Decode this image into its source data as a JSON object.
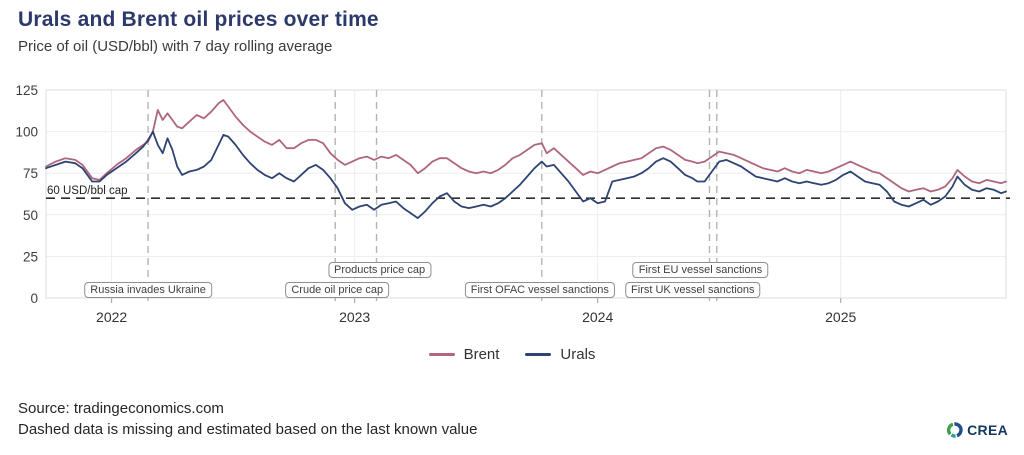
{
  "header": {
    "title": "Urals and Brent oil prices over time",
    "subtitle": "Price of oil (USD/bbl) with 7 day rolling average"
  },
  "chart_data": {
    "type": "line",
    "title": "Urals and Brent oil prices over time",
    "ylabel": "Price of oil (USD/bbl), 7 day rolling average",
    "x_range": [
      2021.73,
      2025.68
    ],
    "y_range": [
      0,
      125
    ],
    "y_ticks": [
      0,
      25,
      50,
      75,
      100,
      125
    ],
    "x_ticks": [
      2022,
      2023,
      2024,
      2025
    ],
    "grid": true,
    "legend_position": "bottom-center",
    "x": [
      2021.73,
      2021.77,
      2021.81,
      2021.85,
      2021.88,
      2021.92,
      2021.95,
      2021.98,
      2022.02,
      2022.06,
      2022.1,
      2022.13,
      2022.15,
      2022.17,
      2022.19,
      2022.21,
      2022.23,
      2022.25,
      2022.27,
      2022.29,
      2022.32,
      2022.35,
      2022.38,
      2022.41,
      2022.44,
      2022.46,
      2022.48,
      2022.51,
      2022.54,
      2022.57,
      2022.6,
      2022.63,
      2022.66,
      2022.69,
      2022.72,
      2022.75,
      2022.78,
      2022.81,
      2022.84,
      2022.87,
      2022.9,
      2022.93,
      2022.96,
      2022.99,
      2023.02,
      2023.05,
      2023.08,
      2023.11,
      2023.14,
      2023.17,
      2023.2,
      2023.23,
      2023.26,
      2023.29,
      2023.32,
      2023.35,
      2023.38,
      2023.41,
      2023.44,
      2023.47,
      2023.5,
      2023.53,
      2023.56,
      2023.59,
      2023.62,
      2023.65,
      2023.68,
      2023.71,
      2023.74,
      2023.77,
      2023.79,
      2023.82,
      2023.85,
      2023.88,
      2023.91,
      2023.94,
      2023.97,
      2024.0,
      2024.03,
      2024.06,
      2024.09,
      2024.12,
      2024.15,
      2024.18,
      2024.21,
      2024.24,
      2024.27,
      2024.3,
      2024.33,
      2024.36,
      2024.39,
      2024.41,
      2024.44,
      2024.47,
      2024.5,
      2024.53,
      2024.56,
      2024.59,
      2024.62,
      2024.65,
      2024.68,
      2024.71,
      2024.74,
      2024.77,
      2024.8,
      2024.83,
      2024.86,
      2024.89,
      2024.92,
      2024.95,
      2024.98,
      2025.01,
      2025.04,
      2025.07,
      2025.1,
      2025.13,
      2025.16,
      2025.19,
      2025.22,
      2025.25,
      2025.28,
      2025.31,
      2025.34,
      2025.37,
      2025.4,
      2025.43,
      2025.46,
      2025.48,
      2025.51,
      2025.54,
      2025.57,
      2025.6,
      2025.63,
      2025.66,
      2025.68
    ],
    "series": [
      {
        "name": "Brent",
        "color": "#b0657e",
        "values": [
          79,
          82,
          84,
          83,
          80,
          72,
          71,
          75,
          80,
          84,
          89,
          92,
          94,
          100,
          113,
          107,
          111,
          107,
          103,
          102,
          106,
          110,
          108,
          112,
          117,
          119,
          115,
          109,
          104,
          100,
          97,
          94,
          92,
          95,
          90,
          90,
          93,
          95,
          95,
          93,
          87,
          83,
          80,
          82,
          84,
          85,
          83,
          85,
          84,
          86,
          83,
          80,
          75,
          78,
          82,
          84,
          84,
          81,
          78,
          76,
          75,
          76,
          75,
          77,
          80,
          84,
          86,
          89,
          92,
          93,
          87,
          90,
          86,
          82,
          78,
          74,
          76,
          75,
          77,
          79,
          81,
          82,
          83,
          84,
          87,
          90,
          91,
          89,
          86,
          83,
          82,
          81,
          82,
          85,
          88,
          87,
          86,
          84,
          82,
          80,
          78,
          77,
          76,
          78,
          76,
          75,
          77,
          76,
          75,
          76,
          78,
          80,
          82,
          80,
          78,
          76,
          75,
          72,
          69,
          66,
          64,
          65,
          66,
          64,
          65,
          67,
          72,
          77,
          73,
          70,
          69,
          71,
          70,
          69,
          70
        ]
      },
      {
        "name": "Urals",
        "color": "#2e4372",
        "values": [
          78,
          80,
          82,
          81,
          78,
          70,
          70,
          74,
          78,
          82,
          87,
          91,
          95,
          100,
          92,
          87,
          96,
          89,
          79,
          74,
          76,
          77,
          79,
          83,
          92,
          98,
          97,
          92,
          86,
          81,
          77,
          74,
          72,
          75,
          72,
          70,
          74,
          78,
          80,
          77,
          72,
          66,
          57,
          53,
          55,
          56,
          53,
          56,
          57,
          58,
          54,
          51,
          48,
          52,
          57,
          61,
          63,
          58,
          55,
          54,
          55,
          56,
          55,
          57,
          60,
          64,
          68,
          73,
          78,
          82,
          79,
          80,
          75,
          70,
          64,
          58,
          60,
          57,
          58,
          70,
          71,
          72,
          73,
          75,
          78,
          82,
          84,
          82,
          78,
          74,
          72,
          70,
          70,
          76,
          82,
          83,
          81,
          79,
          76,
          73,
          72,
          71,
          70,
          72,
          70,
          69,
          70,
          69,
          68,
          69,
          71,
          74,
          76,
          73,
          70,
          69,
          68,
          64,
          58,
          56,
          55,
          57,
          59,
          56,
          58,
          61,
          67,
          73,
          68,
          65,
          64,
          66,
          65,
          63,
          64
        ]
      }
    ],
    "cap_line": {
      "value": 60,
      "label": "60 USD/bbl cap",
      "color": "#2e2e2e"
    },
    "events": [
      {
        "label": "Russia invades Ukraine",
        "x": 2022.15,
        "row": "lower",
        "dx": 0
      },
      {
        "label": "Crude oil price cap",
        "x": 2022.92,
        "row": "lower",
        "dx": 2
      },
      {
        "label": "Products price cap",
        "x": 2023.09,
        "row": "upper",
        "dx": 3
      },
      {
        "label": "First OFAC vessel sanctions",
        "x": 2023.77,
        "row": "lower",
        "dx": -2
      },
      {
        "label": "First EU vessel sanctions",
        "x": 2024.46,
        "row": "upper",
        "dx": -9
      },
      {
        "label": "First UK vessel sanctions",
        "x": 2024.49,
        "row": "lower",
        "dx": -24
      }
    ]
  },
  "legend": {
    "items": [
      {
        "label": "Brent",
        "color": "#b0657e"
      },
      {
        "label": "Urals",
        "color": "#2e4372"
      }
    ]
  },
  "footer": {
    "source": "Source: tradingeconomics.com",
    "note": "Dashed data is missing and estimated based on the last known value",
    "logo_text": "CREA"
  }
}
